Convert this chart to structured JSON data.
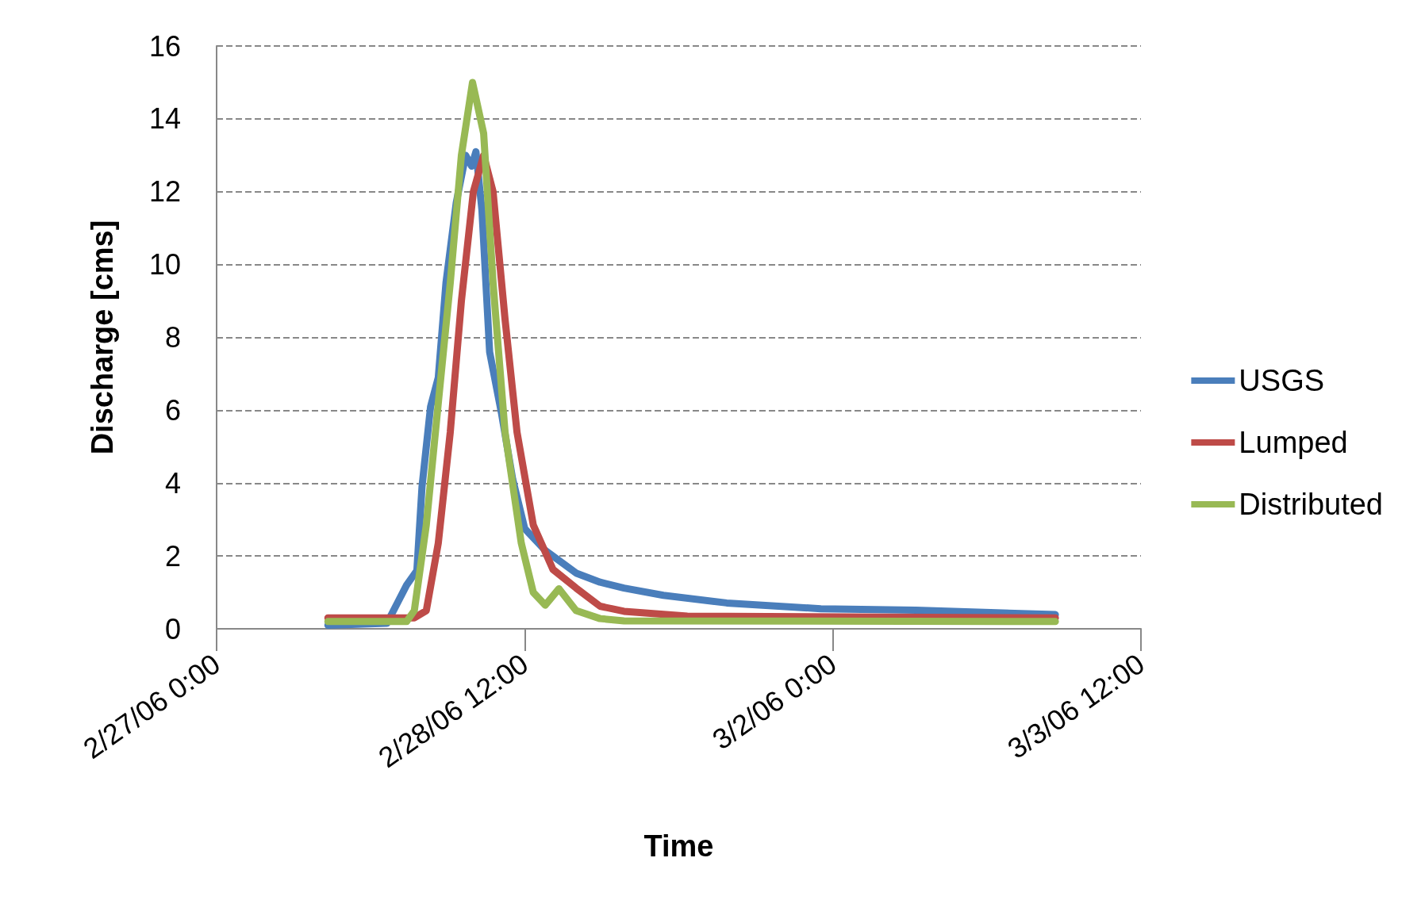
{
  "chart_data": {
    "type": "line",
    "xlabel": "Time",
    "ylabel": "Discharge [cms]",
    "xlim": [
      "--02-27T00:00",
      "--03-03T12:00"
    ],
    "xticks": [
      {
        "value": "--02-27T00:00",
        "label": "2/27/06 0:00"
      },
      {
        "value": "--02-28T12:00",
        "label": "2/28/06 12:00"
      },
      {
        "value": "--03-02T00:00",
        "label": "3/2/06 0:00"
      },
      {
        "value": "--03-03T12:00",
        "label": "3/3/06 12:00"
      }
    ],
    "ylim": [
      0,
      16
    ],
    "yticks": [
      0,
      2,
      4,
      6,
      8,
      10,
      12,
      14,
      16
    ],
    "grid": "y",
    "legend": "right",
    "marker": "none",
    "line_style": "solid",
    "series": [
      {
        "name": "USGS",
        "color": "#4a7ebb",
        "x": [
          "--02-27T13:00",
          "--02-27T19:54",
          "--02-27T22:12",
          "--02-27T23:24",
          "--02-28T00:00",
          "--02-28T01:00",
          "--02-28T01:54",
          "--02-28T02:48",
          "--02-28T04:00",
          "--02-28T05:06",
          "--02-28T05:48",
          "--02-28T06:18",
          "--02-28T07:00",
          "--02-28T07:54",
          "--02-28T09:18",
          "--02-28T10:36",
          "--02-28T12:00",
          "--02-28T14:24",
          "--02-28T18:00",
          "--02-28T20:48",
          "--02-28T23:36",
          "--03-01T04:12",
          "--03-01T11:36",
          "--03-01T22:36",
          "--03-02T09:42",
          "--03-03T02:00"
        ],
        "values": [
          0.1,
          0.15,
          1.2,
          1.6,
          3.9,
          6.1,
          6.9,
          9.5,
          11.7,
          13.0,
          12.7,
          13.1,
          11.5,
          7.6,
          5.9,
          4.1,
          2.75,
          2.15,
          1.53,
          1.28,
          1.12,
          0.92,
          0.71,
          0.55,
          0.51,
          0.39
        ]
      },
      {
        "name": "Lumped",
        "color": "#be4b48",
        "x": [
          "--02-27T13:00",
          "--02-27T23:06",
          "--02-28T00:30",
          "--02-28T01:54",
          "--02-28T03:18",
          "--02-28T04:36",
          "--02-28T06:00",
          "--02-28T07:12",
          "--02-28T08:18",
          "--02-28T09:42",
          "--02-28T11:06",
          "--02-28T13:00",
          "--02-28T15:18",
          "--02-28T18:00",
          "--02-28T20:48",
          "--02-28T23:36",
          "--03-01T07:00",
          "--03-03T02:00"
        ],
        "values": [
          0.3,
          0.3,
          0.5,
          2.35,
          5.4,
          9.0,
          12.0,
          13.0,
          12.0,
          8.5,
          5.4,
          2.85,
          1.63,
          1.12,
          0.62,
          0.48,
          0.35,
          0.3
        ]
      },
      {
        "name": "Distributed",
        "color": "#98b954",
        "x": [
          "--02-27T13:00",
          "--02-27T22:12",
          "--02-27T23:06",
          "--02-28T00:30",
          "--02-28T01:54",
          "--02-28T03:18",
          "--02-28T04:36",
          "--02-28T05:54",
          "--02-28T07:12",
          "--02-28T08:18",
          "--02-28T09:42",
          "--02-28T11:36",
          "--02-28T13:00",
          "--02-28T14:24",
          "--02-28T16:00",
          "--02-28T18:00",
          "--02-28T20:48",
          "--02-28T23:36",
          "--03-03T02:00"
        ],
        "values": [
          0.2,
          0.2,
          0.5,
          2.85,
          6.2,
          9.5,
          13.0,
          15.0,
          13.6,
          9.5,
          5.4,
          2.35,
          1.0,
          0.65,
          1.1,
          0.5,
          0.28,
          0.22,
          0.2
        ]
      }
    ]
  }
}
